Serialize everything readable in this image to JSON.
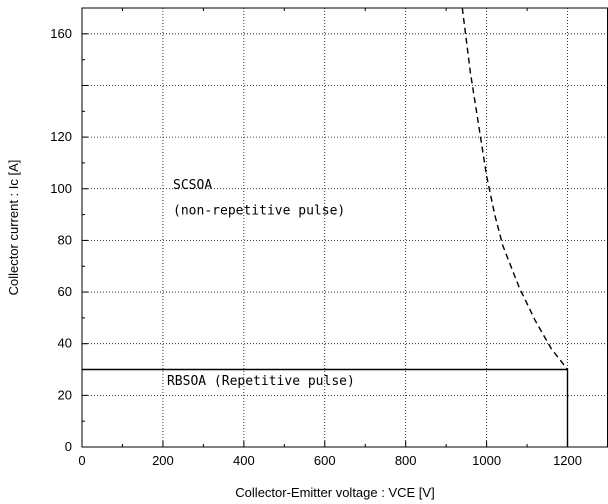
{
  "chart_data": {
    "type": "line",
    "xlabel": "Collector-Emitter voltage  :  VCE [V]",
    "ylabel": "Collector current  :  Ic [A]",
    "xlim": [
      0,
      1300
    ],
    "ylim": [
      0,
      170
    ],
    "x_ticks": [
      0,
      200,
      400,
      600,
      800,
      1000,
      1200
    ],
    "y_ticks": [
      0,
      20,
      40,
      60,
      80,
      100,
      120,
      160
    ],
    "x_tick_labels": [
      "0",
      "200",
      "400",
      "600",
      "800",
      "1000",
      "1200"
    ],
    "y_tick_labels": [
      "0",
      "20",
      "40",
      "60",
      "80",
      "100",
      "120",
      "160"
    ],
    "grid": true,
    "series": [
      {
        "style": "solid",
        "x": [
          0,
          1200,
          1200
        ],
        "y": [
          30,
          30,
          0
        ]
      },
      {
        "style": "dashed",
        "x": [
          940,
          960,
          980,
          1000,
          1020,
          1040,
          1080,
          1120,
          1160,
          1200
        ],
        "y": [
          170,
          145,
          125,
          105,
          90,
          78,
          62,
          49,
          38,
          30
        ]
      }
    ],
    "annotations": [
      {
        "text": "SCSOA",
        "x": 225,
        "y": 100
      },
      {
        "text": "(non-repetitive pulse)",
        "x": 225,
        "y": 90
      },
      {
        "text": "RBSOA (Repetitive pulse)",
        "x": 210,
        "y": 24
      }
    ]
  }
}
